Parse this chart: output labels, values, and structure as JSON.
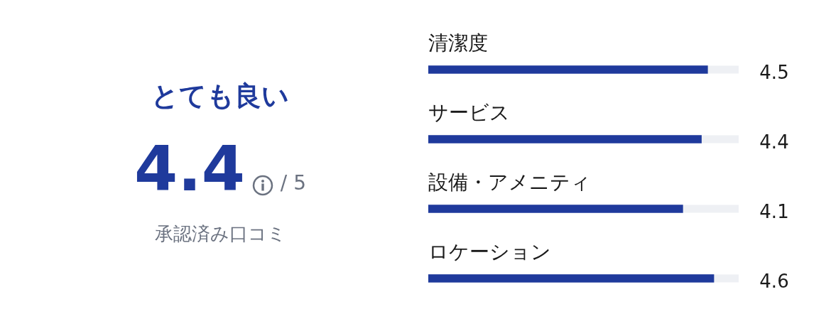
{
  "chart_data": {
    "type": "bar",
    "orientation": "horizontal",
    "categories": [
      "清潔度",
      "サービス",
      "設備・アメニティ",
      "ロケーション"
    ],
    "values": [
      4.5,
      4.4,
      4.1,
      4.6
    ],
    "color": "#1f3a9c",
    "xlim": [
      0,
      5
    ],
    "tick_labels": false,
    "data_labels": true,
    "annotations": [
      "とても良い",
      "4.4",
      "/ 5",
      "承認済み口コミ"
    ]
  }
}
